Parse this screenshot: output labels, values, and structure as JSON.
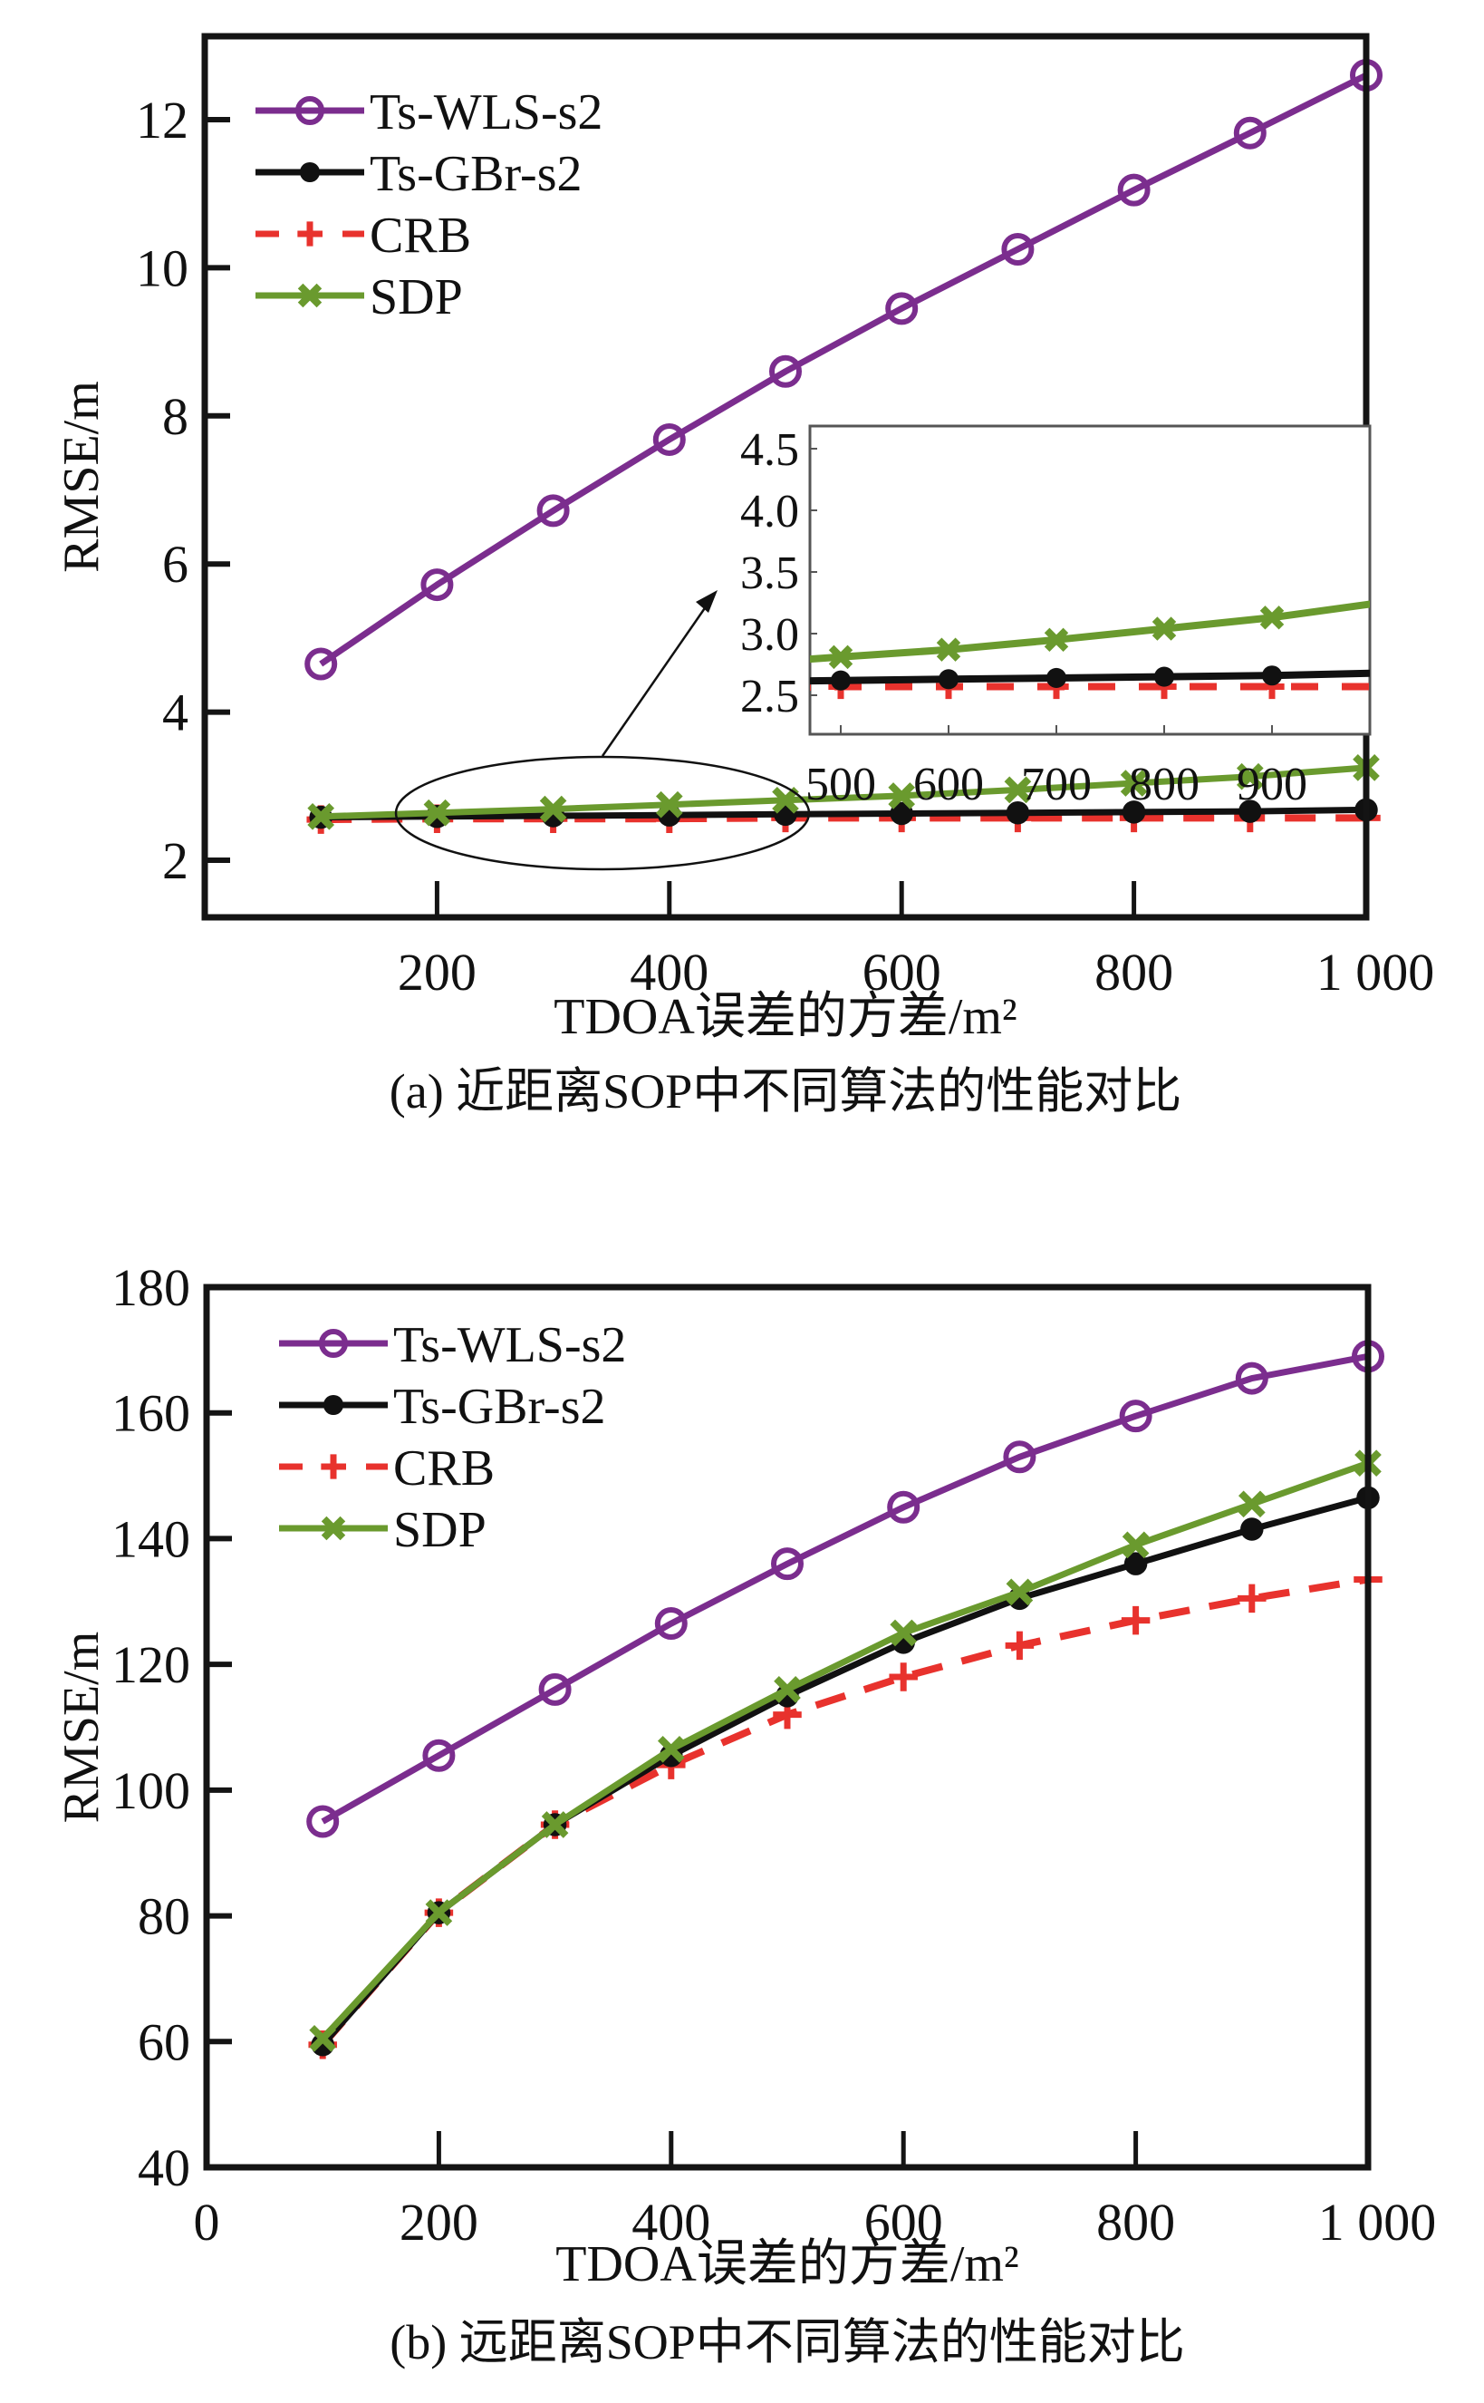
{
  "chart_data": [
    {
      "id": "a",
      "type": "line",
      "title": "",
      "caption": "(a) 近距离SOP中不同算法的性能对比",
      "xlabel": "TDOA误差的方差/m²",
      "ylabel": "RMSE/m",
      "xlim": [
        0,
        1000
      ],
      "ylim": [
        1.2,
        13.5
      ],
      "xticks": [
        200,
        400,
        600,
        800,
        1000
      ],
      "xtick_labels": [
        "200",
        "400",
        "600",
        "800",
        "1 000"
      ],
      "yticks": [
        2,
        4,
        6,
        8,
        10,
        12
      ],
      "ytick_labels": [
        "2",
        "4",
        "6",
        "8",
        "10",
        "12"
      ],
      "grid": false,
      "legend_position": "top-left",
      "x": [
        100,
        200,
        300,
        400,
        500,
        600,
        700,
        800,
        900,
        1000
      ],
      "series": [
        {
          "name": "Ts-WLS-s2",
          "color": "#7b2d8e",
          "marker": "open-circle",
          "dash": "solid",
          "values": [
            4.65,
            5.72,
            6.72,
            7.68,
            8.6,
            9.45,
            10.25,
            11.05,
            11.82,
            12.6
          ]
        },
        {
          "name": "Ts-GBr-s2",
          "color": "#111111",
          "marker": "filled-circle",
          "dash": "solid",
          "values": [
            2.58,
            2.59,
            2.6,
            2.61,
            2.62,
            2.63,
            2.64,
            2.65,
            2.66,
            2.68
          ]
        },
        {
          "name": "CRB",
          "color": "#e8322d",
          "marker": "plus",
          "dash": "dashed",
          "values": [
            2.55,
            2.56,
            2.56,
            2.56,
            2.57,
            2.57,
            2.57,
            2.57,
            2.57,
            2.57
          ]
        },
        {
          "name": "SDP",
          "color": "#6a9a2e",
          "marker": "x",
          "dash": "solid",
          "values": [
            2.59,
            2.64,
            2.69,
            2.75,
            2.81,
            2.87,
            2.95,
            3.04,
            3.13,
            3.25
          ]
        }
      ],
      "inset": {
        "xlim": [
          470,
          1000
        ],
        "ylim": [
          2.2,
          4.7
        ],
        "xticks": [
          500,
          600,
          700,
          800,
          900
        ],
        "xtick_labels": [
          "500",
          "600",
          "700",
          "800",
          "900"
        ],
        "yticks": [
          2.5,
          3.0,
          3.5,
          4.0,
          4.5
        ],
        "ytick_labels": [
          "2.5",
          "3.0",
          "3.5",
          "4.0",
          "4.5"
        ],
        "x_range_shown": [
          500,
          1000
        ]
      },
      "annotation": "ellipse around x 170–530 at low RMSE with arrow pointing to inset"
    },
    {
      "id": "b",
      "type": "line",
      "title": "",
      "caption": "(b) 远距离SOP中不同算法的性能对比",
      "xlabel": "TDOA误差的方差/m²",
      "ylabel": "RMSE/m",
      "xlim": [
        0,
        1000
      ],
      "ylim": [
        40,
        180
      ],
      "xticks": [
        0,
        200,
        400,
        600,
        800,
        1000
      ],
      "xtick_labels": [
        "0",
        "200",
        "400",
        "600",
        "800",
        "1 000"
      ],
      "yticks": [
        40,
        60,
        80,
        100,
        120,
        140,
        160,
        180
      ],
      "ytick_labels": [
        "40",
        "60",
        "80",
        "100",
        "120",
        "140",
        "160",
        "180"
      ],
      "grid": false,
      "legend_position": "top-left",
      "x": [
        100,
        200,
        300,
        400,
        500,
        600,
        700,
        800,
        900,
        1000
      ],
      "series": [
        {
          "name": "Ts-WLS-s2",
          "color": "#7b2d8e",
          "marker": "open-circle",
          "dash": "solid",
          "values": [
            95,
            105.5,
            116,
            126.5,
            136,
            145,
            153,
            159.5,
            165.5,
            169
          ]
        },
        {
          "name": "Ts-GBr-s2",
          "color": "#111111",
          "marker": "filled-circle",
          "dash": "solid",
          "values": [
            59.5,
            80.5,
            94.5,
            105.5,
            115,
            123.5,
            130.5,
            136,
            141.5,
            146.5
          ]
        },
        {
          "name": "CRB",
          "color": "#e8322d",
          "marker": "plus",
          "dash": "dashed",
          "values": [
            59.5,
            80.5,
            94.5,
            104,
            112,
            118,
            123,
            127,
            130.5,
            133.5
          ]
        },
        {
          "name": "SDP",
          "color": "#6a9a2e",
          "marker": "x",
          "dash": "solid",
          "values": [
            60.5,
            80.5,
            94.5,
            106.5,
            116,
            125,
            131.5,
            139,
            145.5,
            152
          ]
        }
      ]
    }
  ]
}
